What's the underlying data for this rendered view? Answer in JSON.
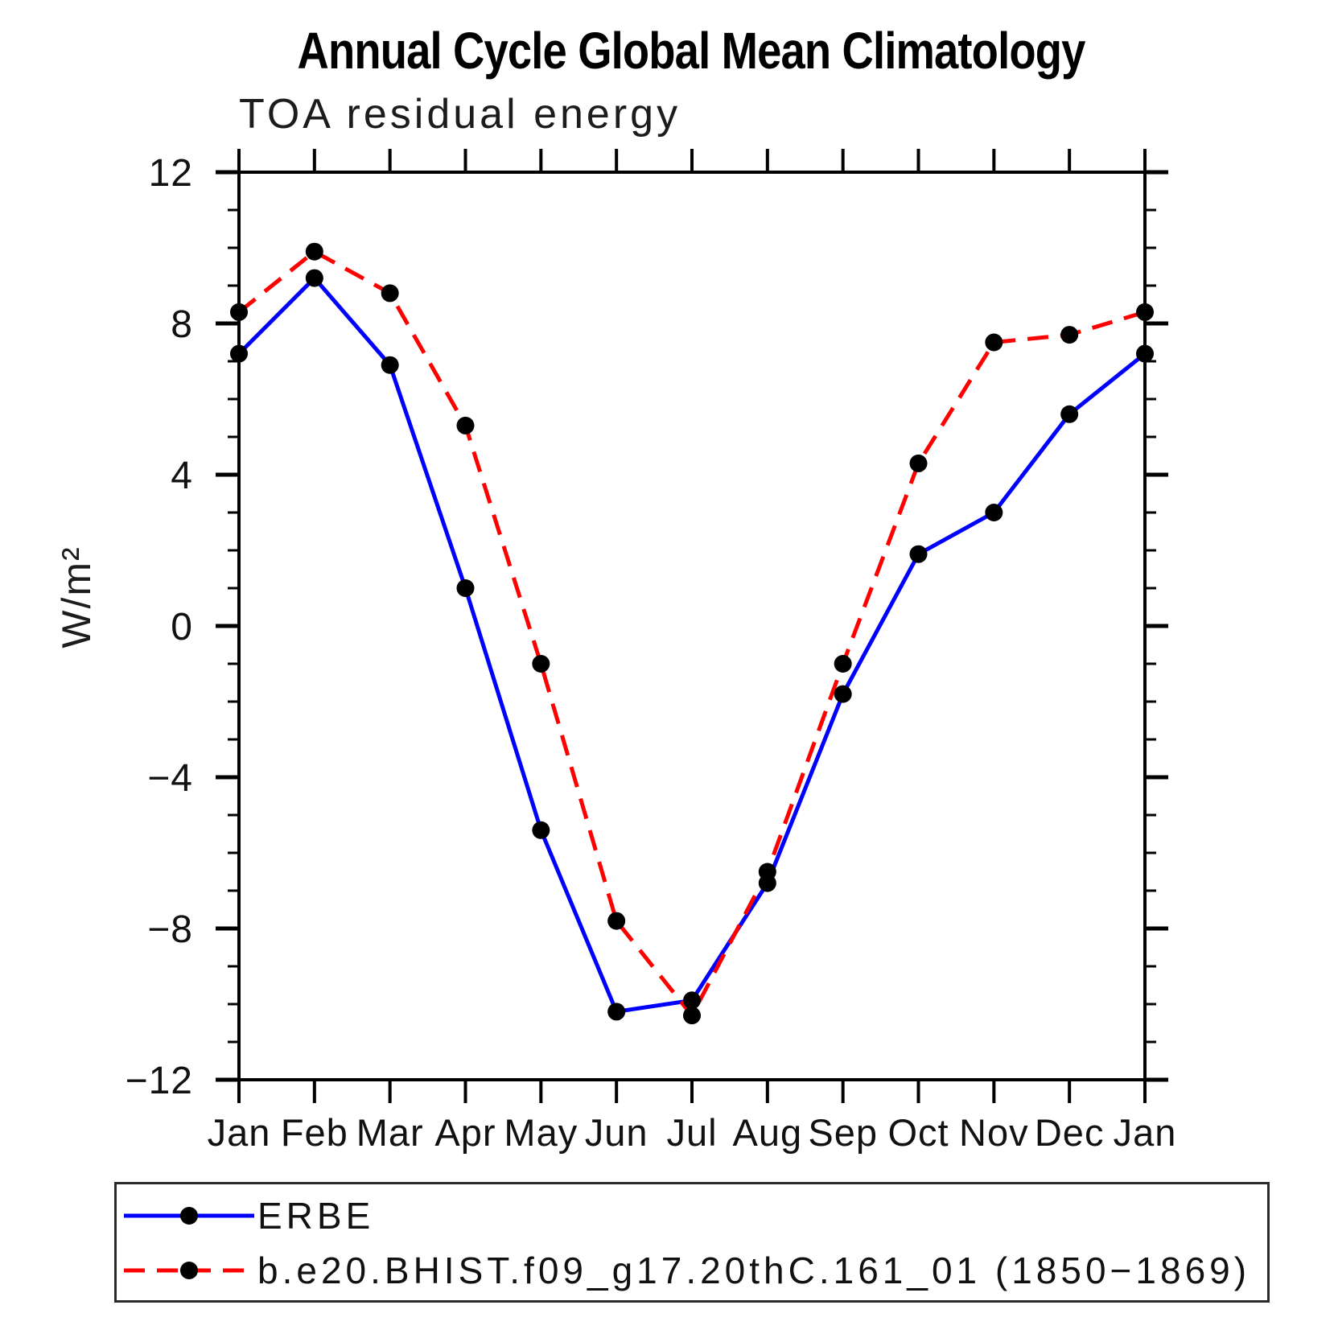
{
  "title": "Annual Cycle Global Mean Climatology",
  "subtitle": "TOA residual energy",
  "ylabel": "W/m²",
  "legend": {
    "items": [
      {
        "label": "ERBE",
        "color": "#0000ff",
        "style": "solid"
      },
      {
        "label": "b.e20.BHIST.f09_g17.20thC.161_01 (1850−1869)",
        "color": "#ff0000",
        "style": "dashed"
      }
    ]
  },
  "chart_data": {
    "type": "line",
    "title": "TOA residual energy",
    "suptitle": "Annual Cycle Global Mean Climatology",
    "xlabel": "",
    "ylabel": "W/m²",
    "x_categories": [
      "Jan",
      "Feb",
      "Mar",
      "Apr",
      "May",
      "Jun",
      "Jul",
      "Aug",
      "Sep",
      "Oct",
      "Nov",
      "Dec",
      "Jan"
    ],
    "series": [
      {
        "name": "ERBE",
        "color": "#0000ff",
        "line_style": "solid",
        "marker": "circle",
        "marker_color": "#000000",
        "values": [
          7.2,
          9.2,
          6.9,
          1.0,
          -5.4,
          -10.2,
          -9.9,
          -6.8,
          -1.8,
          1.9,
          3.0,
          5.6,
          7.2
        ]
      },
      {
        "name": "b.e20.BHIST.f09_g17.20thC.161_01 (1850−1869)",
        "color": "#ff0000",
        "line_style": "dashed",
        "marker": "circle",
        "marker_color": "#000000",
        "values": [
          8.3,
          9.9,
          8.8,
          5.3,
          -1.0,
          -7.8,
          -10.3,
          -6.5,
          -1.0,
          4.3,
          7.5,
          7.7,
          8.3
        ]
      }
    ],
    "ylim": [
      -12,
      12
    ],
    "y_major_ticks": [
      12,
      8,
      4,
      0,
      -4,
      -8,
      -12
    ],
    "y_minor_step": 1,
    "grid": false,
    "legend_position": "bottom"
  }
}
